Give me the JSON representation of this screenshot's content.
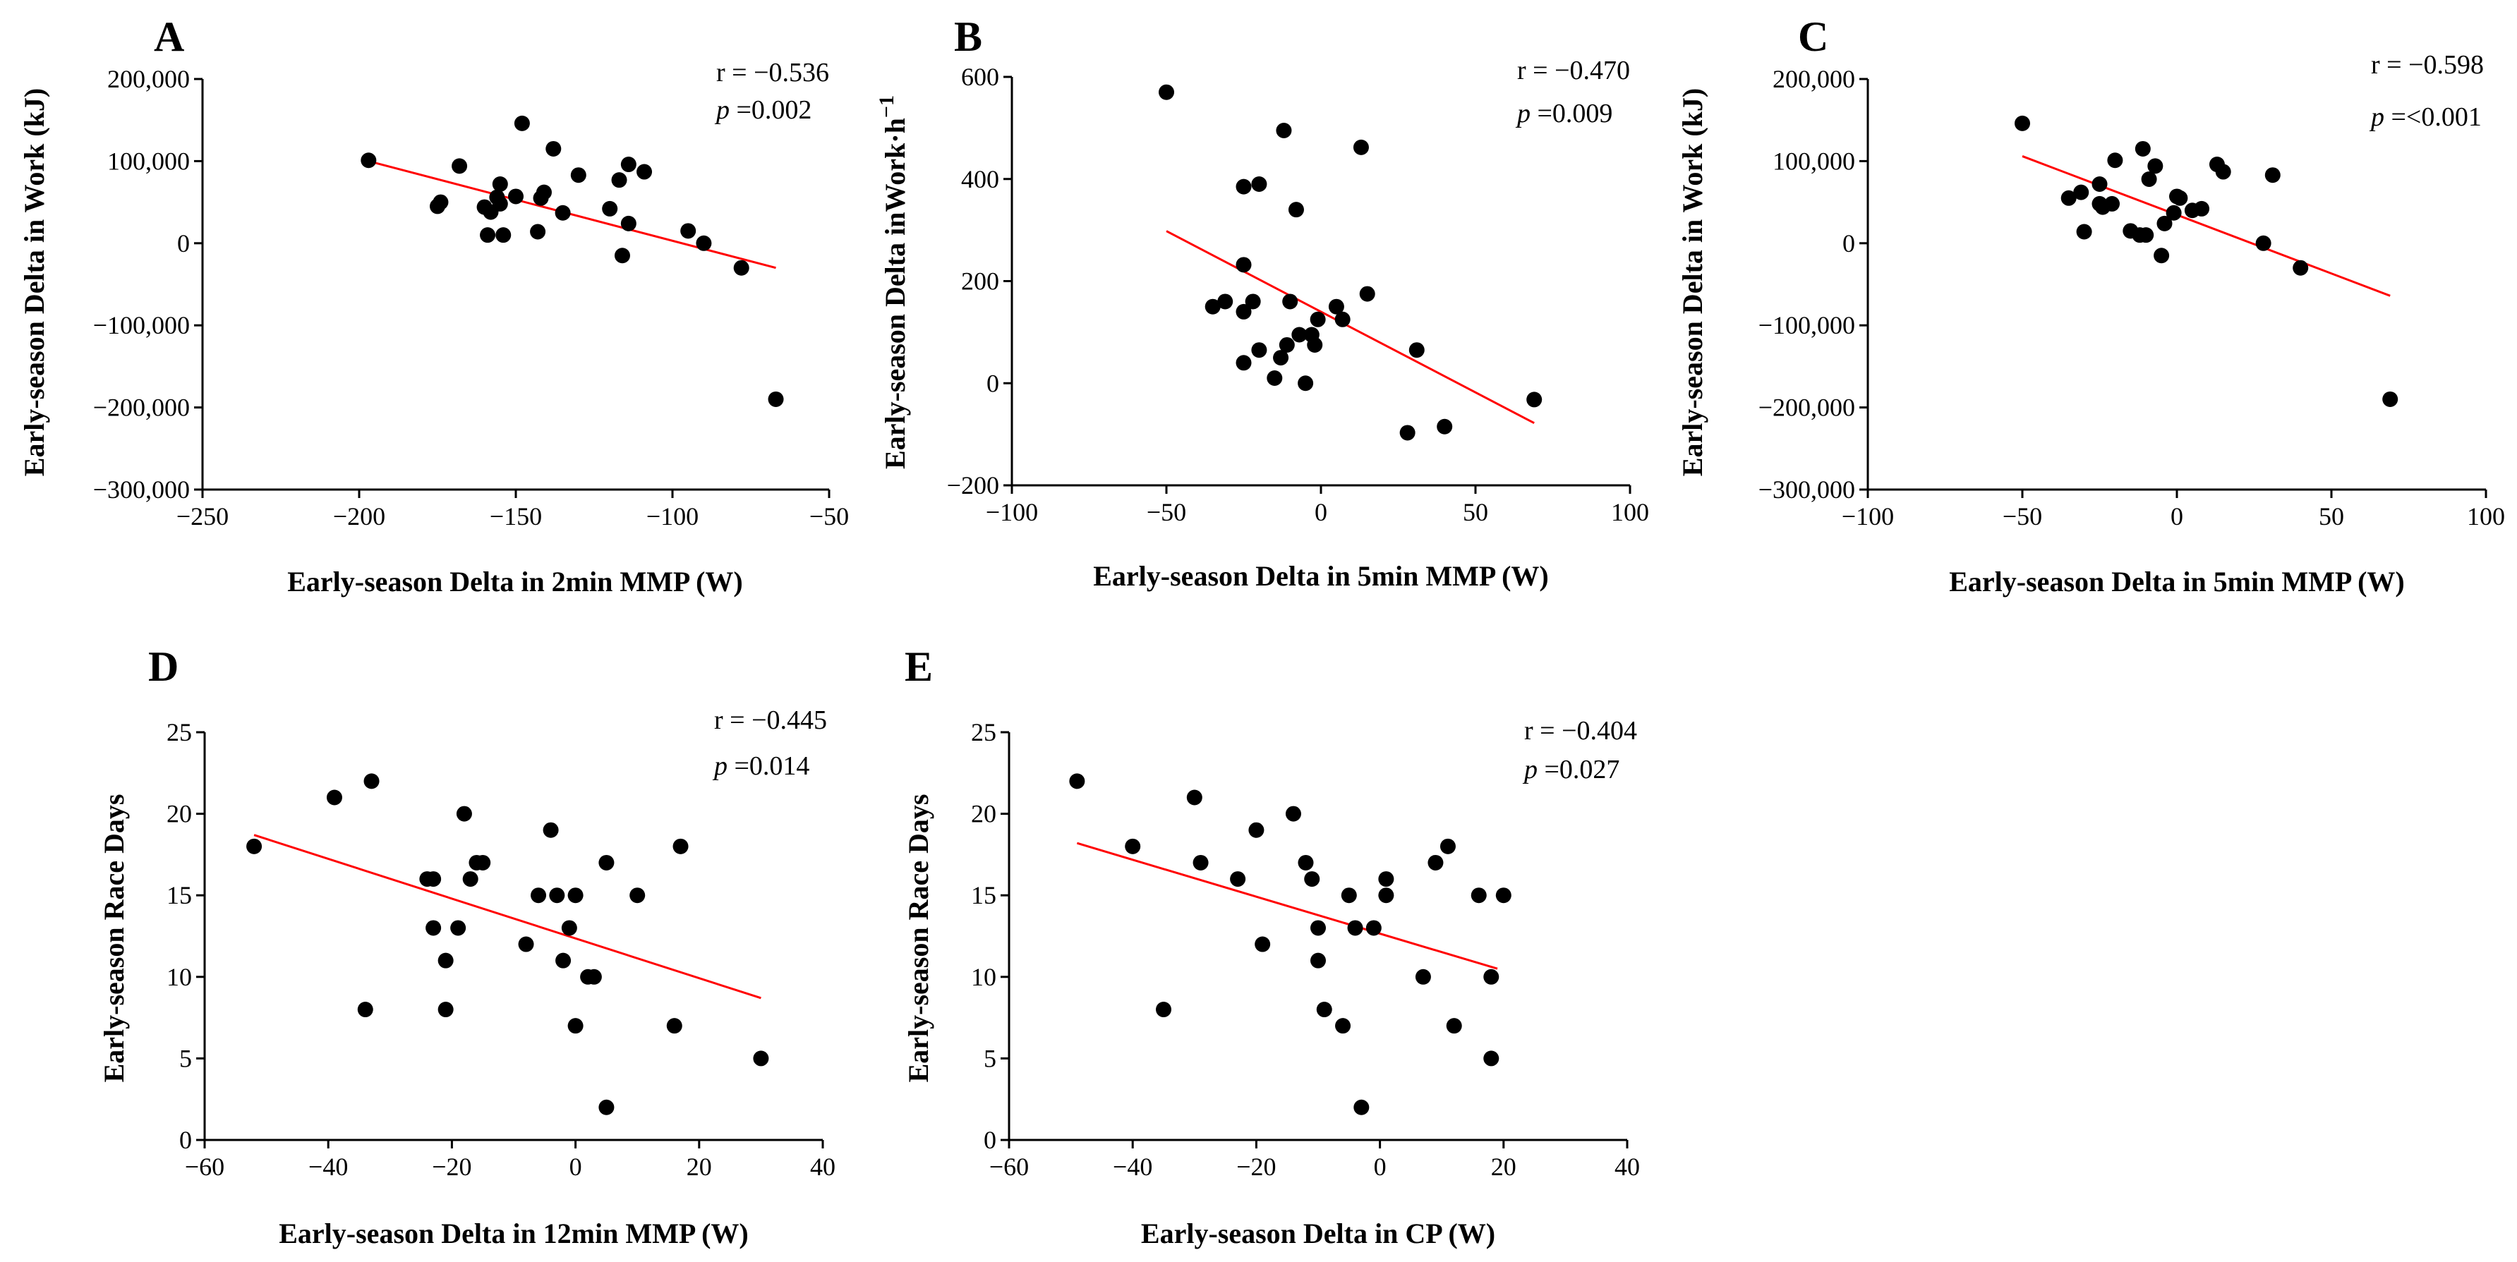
{
  "chart_data": [
    {
      "panel": "A",
      "type": "scatter",
      "xlabel": "Early-season Delta in 2min MMP (W)",
      "ylabel": "Early-season Delta in Work (kJ)",
      "xlim": [
        -250,
        -50
      ],
      "ylim": [
        -300000,
        200000
      ],
      "xticks": [
        -250,
        -200,
        -150,
        -100,
        -50
      ],
      "xtick_labels": [
        "−250",
        "−200",
        "−150",
        "−100",
        "−50"
      ],
      "yticks": [
        -300000,
        -200000,
        -100000,
        0,
        100000,
        200000
      ],
      "ytick_labels": [
        "−300,000",
        "−200,000",
        "−100,000",
        "0",
        "100,000",
        "200,000"
      ],
      "stats": {
        "r_label": "r = −0.536",
        "p_symbol": "p",
        "p_value": " =0.002"
      },
      "fit_line": {
        "x": [
          -197,
          -67
        ],
        "y": [
          100000,
          -30000
        ]
      },
      "points": [
        {
          "x": -197,
          "y": 101000
        },
        {
          "x": -175,
          "y": 45000
        },
        {
          "x": -174,
          "y": 50000
        },
        {
          "x": -168,
          "y": 94000
        },
        {
          "x": -160,
          "y": 44000
        },
        {
          "x": -159,
          "y": 10000
        },
        {
          "x": -158,
          "y": 38000
        },
        {
          "x": -156,
          "y": 56000
        },
        {
          "x": -155,
          "y": 48000
        },
        {
          "x": -155,
          "y": 72000
        },
        {
          "x": -154,
          "y": 10000
        },
        {
          "x": -150,
          "y": 57000
        },
        {
          "x": -148,
          "y": 146000
        },
        {
          "x": -143,
          "y": 14000
        },
        {
          "x": -142,
          "y": 55000
        },
        {
          "x": -141,
          "y": 62000
        },
        {
          "x": -138,
          "y": 115000
        },
        {
          "x": -135,
          "y": 37000
        },
        {
          "x": -130,
          "y": 83000
        },
        {
          "x": -120,
          "y": 42000
        },
        {
          "x": -117,
          "y": 77000
        },
        {
          "x": -116,
          "y": -15000
        },
        {
          "x": -114,
          "y": 24000
        },
        {
          "x": -114,
          "y": 96000
        },
        {
          "x": -109,
          "y": 87000
        },
        {
          "x": -95,
          "y": 15000
        },
        {
          "x": -90,
          "y": 0
        },
        {
          "x": -78,
          "y": -30000
        },
        {
          "x": -67,
          "y": -190000
        }
      ]
    },
    {
      "panel": "B",
      "type": "scatter",
      "xlabel": "Early-season Delta in 5min MMP (W)",
      "ylabel": "Early-season Delta inWork·h",
      "ylabel_sup": "−1",
      "xlim": [
        -100,
        100
      ],
      "ylim": [
        -200,
        600
      ],
      "xticks": [
        -100,
        -50,
        0,
        50,
        100
      ],
      "xtick_labels": [
        "−100",
        "−50",
        "0",
        "50",
        "100"
      ],
      "yticks": [
        -200,
        0,
        200,
        400,
        600
      ],
      "ytick_labels": [
        "−200",
        "0",
        "200",
        "400",
        "600"
      ],
      "stats": {
        "r_label": "r = −0.470",
        "p_symbol": "p",
        "p_value": " =0.009"
      },
      "fit_line": {
        "x": [
          -50,
          69
        ],
        "y": [
          298,
          -78
        ]
      },
      "points": [
        {
          "x": -50,
          "y": 570
        },
        {
          "x": -35,
          "y": 150
        },
        {
          "x": -31,
          "y": 160
        },
        {
          "x": -25,
          "y": 385
        },
        {
          "x": -25,
          "y": 232
        },
        {
          "x": -25,
          "y": 140
        },
        {
          "x": -25,
          "y": 40
        },
        {
          "x": -22,
          "y": 160
        },
        {
          "x": -20,
          "y": 390
        },
        {
          "x": -20,
          "y": 65
        },
        {
          "x": -15,
          "y": 10
        },
        {
          "x": -13,
          "y": 50
        },
        {
          "x": -12,
          "y": 495
        },
        {
          "x": -11,
          "y": 75
        },
        {
          "x": -10,
          "y": 160
        },
        {
          "x": -8,
          "y": 340
        },
        {
          "x": -7,
          "y": 95
        },
        {
          "x": -5,
          "y": 0
        },
        {
          "x": -3,
          "y": 95
        },
        {
          "x": -2,
          "y": 75
        },
        {
          "x": -1,
          "y": 125
        },
        {
          "x": 5,
          "y": 150
        },
        {
          "x": 7,
          "y": 125
        },
        {
          "x": 13,
          "y": 462
        },
        {
          "x": 15,
          "y": 175
        },
        {
          "x": 28,
          "y": -97
        },
        {
          "x": 31,
          "y": 65
        },
        {
          "x": 40,
          "y": -85
        },
        {
          "x": 69,
          "y": -32
        }
      ]
    },
    {
      "panel": "C",
      "type": "scatter",
      "xlabel": "Early-season Delta in 5min MMP (W)",
      "ylabel": "Early-season Delta in Work (kJ)",
      "xlim": [
        -100,
        100
      ],
      "ylim": [
        -300000,
        200000
      ],
      "xticks": [
        -100,
        -50,
        0,
        50,
        100
      ],
      "xtick_labels": [
        "−100",
        "−50",
        "0",
        "50",
        "100"
      ],
      "yticks": [
        -300000,
        -200000,
        -100000,
        0,
        100000,
        200000
      ],
      "ytick_labels": [
        "−300,000",
        "−200,000",
        "−100,000",
        "0",
        "100,000",
        "200,000"
      ],
      "stats": {
        "r_label": "r = −0.598",
        "p_symbol": "p",
        "p_value": " =<0.001"
      },
      "fit_line": {
        "x": [
          -50,
          69
        ],
        "y": [
          106000,
          -64000
        ]
      },
      "points": [
        {
          "x": -50,
          "y": 146000
        },
        {
          "x": -35,
          "y": 55000
        },
        {
          "x": -31,
          "y": 62000
        },
        {
          "x": -30,
          "y": 14000
        },
        {
          "x": -25,
          "y": 72000
        },
        {
          "x": -25,
          "y": 48000
        },
        {
          "x": -24,
          "y": 44000
        },
        {
          "x": -21,
          "y": 48000
        },
        {
          "x": -20,
          "y": 101000
        },
        {
          "x": -15,
          "y": 15000
        },
        {
          "x": -12,
          "y": 10000
        },
        {
          "x": -11,
          "y": 115000
        },
        {
          "x": -10,
          "y": 10000
        },
        {
          "x": -9,
          "y": 78000
        },
        {
          "x": -7,
          "y": 94000
        },
        {
          "x": -5,
          "y": -15000
        },
        {
          "x": -4,
          "y": 24000
        },
        {
          "x": -1,
          "y": 37000
        },
        {
          "x": 0,
          "y": 57000
        },
        {
          "x": 1,
          "y": 55000
        },
        {
          "x": 5,
          "y": 40000
        },
        {
          "x": 8,
          "y": 42000
        },
        {
          "x": 13,
          "y": 96000
        },
        {
          "x": 15,
          "y": 87000
        },
        {
          "x": 28,
          "y": 0
        },
        {
          "x": 31,
          "y": 83000
        },
        {
          "x": 40,
          "y": -30000
        },
        {
          "x": 69,
          "y": -190000
        }
      ]
    },
    {
      "panel": "D",
      "type": "scatter",
      "xlabel": "Early-season Delta in 12min MMP (W)",
      "ylabel": "Early-season Race Days",
      "xlim": [
        -60,
        40
      ],
      "ylim": [
        0,
        25
      ],
      "xticks": [
        -60,
        -40,
        -20,
        0,
        20,
        40
      ],
      "xtick_labels": [
        "−60",
        "−40",
        "−20",
        "0",
        "20",
        "40"
      ],
      "yticks": [
        0,
        5,
        10,
        15,
        20,
        25
      ],
      "ytick_labels": [
        "0",
        "5",
        "10",
        "15",
        "20",
        "25"
      ],
      "stats": {
        "r_label": "r = −0.445",
        "p_symbol": "p",
        "p_value": " =0.014"
      },
      "fit_line": {
        "x": [
          -52,
          30
        ],
        "y": [
          18.7,
          8.7
        ]
      },
      "points": [
        {
          "x": -52,
          "y": 18
        },
        {
          "x": -39,
          "y": 21
        },
        {
          "x": -33,
          "y": 22
        },
        {
          "x": -34,
          "y": 8
        },
        {
          "x": -24,
          "y": 16
        },
        {
          "x": -23,
          "y": 16
        },
        {
          "x": -23,
          "y": 13
        },
        {
          "x": -21,
          "y": 11
        },
        {
          "x": -21,
          "y": 8
        },
        {
          "x": -19,
          "y": 13
        },
        {
          "x": -18,
          "y": 20
        },
        {
          "x": -17,
          "y": 16
        },
        {
          "x": -16,
          "y": 17
        },
        {
          "x": -15,
          "y": 17
        },
        {
          "x": -8,
          "y": 12
        },
        {
          "x": -6,
          "y": 15
        },
        {
          "x": -4,
          "y": 19
        },
        {
          "x": -3,
          "y": 15
        },
        {
          "x": -2,
          "y": 11
        },
        {
          "x": -1,
          "y": 13
        },
        {
          "x": 0,
          "y": 15
        },
        {
          "x": 0,
          "y": 7
        },
        {
          "x": 2,
          "y": 10
        },
        {
          "x": 3,
          "y": 10
        },
        {
          "x": 5,
          "y": 17
        },
        {
          "x": 5,
          "y": 2
        },
        {
          "x": 10,
          "y": 15
        },
        {
          "x": 16,
          "y": 7
        },
        {
          "x": 17,
          "y": 18
        },
        {
          "x": 30,
          "y": 5
        }
      ]
    },
    {
      "panel": "E",
      "type": "scatter",
      "xlabel": "Early-season Delta in CP (W)",
      "ylabel": "Early-season Race Days",
      "xlim": [
        -60,
        40
      ],
      "ylim": [
        0,
        25
      ],
      "xticks": [
        -60,
        -40,
        -20,
        0,
        20,
        40
      ],
      "xtick_labels": [
        "−60",
        "−40",
        "−20",
        "0",
        "20",
        "40"
      ],
      "yticks": [
        0,
        5,
        10,
        15,
        20,
        25
      ],
      "ytick_labels": [
        "0",
        "5",
        "10",
        "15",
        "20",
        "25"
      ],
      "stats": {
        "r_label": "r = −0.404",
        "p_symbol": "p",
        "p_value": " =0.027"
      },
      "fit_line": {
        "x": [
          -49,
          19
        ],
        "y": [
          18.2,
          10.5
        ]
      },
      "points": [
        {
          "x": -49,
          "y": 22
        },
        {
          "x": -40,
          "y": 18
        },
        {
          "x": -35,
          "y": 8
        },
        {
          "x": -30,
          "y": 21
        },
        {
          "x": -29,
          "y": 17
        },
        {
          "x": -23,
          "y": 16
        },
        {
          "x": -20,
          "y": 19
        },
        {
          "x": -19,
          "y": 12
        },
        {
          "x": -14,
          "y": 20
        },
        {
          "x": -12,
          "y": 17
        },
        {
          "x": -11,
          "y": 16
        },
        {
          "x": -10,
          "y": 13
        },
        {
          "x": -10,
          "y": 11
        },
        {
          "x": -9,
          "y": 8
        },
        {
          "x": -6,
          "y": 7
        },
        {
          "x": -5,
          "y": 15
        },
        {
          "x": -4,
          "y": 13
        },
        {
          "x": -3,
          "y": 2
        },
        {
          "x": -1,
          "y": 13
        },
        {
          "x": 1,
          "y": 16
        },
        {
          "x": 1,
          "y": 15
        },
        {
          "x": 7,
          "y": 10
        },
        {
          "x": 9,
          "y": 17
        },
        {
          "x": 11,
          "y": 18
        },
        {
          "x": 12,
          "y": 7
        },
        {
          "x": 16,
          "y": 15
        },
        {
          "x": 18,
          "y": 10
        },
        {
          "x": 18,
          "y": 5
        },
        {
          "x": 20,
          "y": 15
        }
      ]
    }
  ]
}
